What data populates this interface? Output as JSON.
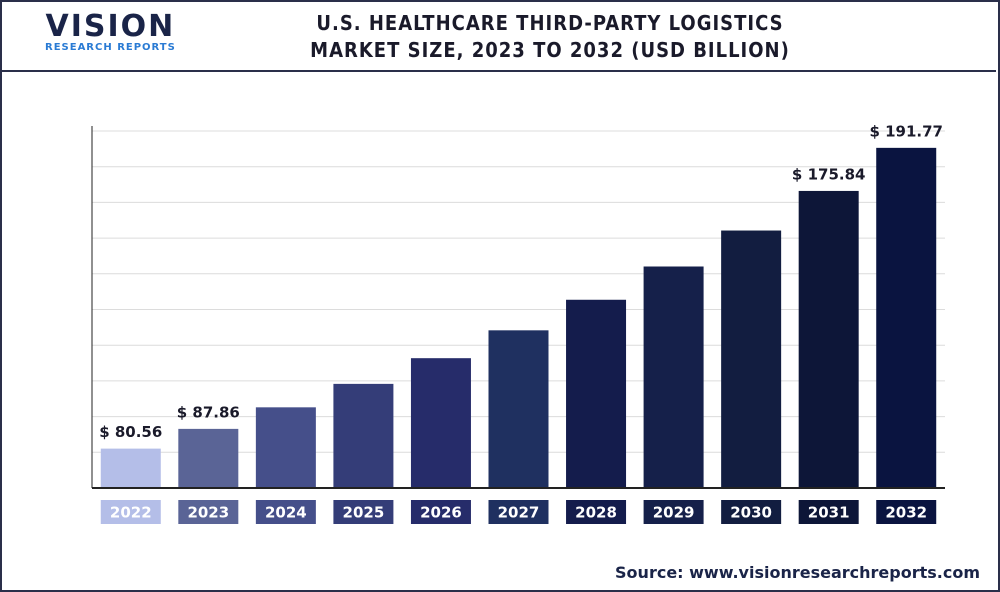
{
  "logo": {
    "name": "VISION",
    "tagline": "RESEARCH REPORTS"
  },
  "chart_data": {
    "type": "bar",
    "title": "U.S. HEALTHCARE THIRD-PARTY LOGISTICS MARKET SIZE, 2023 TO 2032 (USD BILLION)",
    "categories": [
      "2022",
      "2023",
      "2024",
      "2025",
      "2026",
      "2027",
      "2028",
      "2029",
      "2030",
      "2031",
      "2032"
    ],
    "values": [
      80.56,
      87.86,
      95.83,
      104.5,
      114.0,
      124.3,
      135.6,
      147.9,
      161.2,
      175.84,
      191.77
    ],
    "value_labels": [
      "$ 80.56",
      "$ 87.86",
      null,
      null,
      null,
      null,
      null,
      null,
      null,
      "$ 175.84",
      "$ 191.77"
    ],
    "colors": [
      "#b4bee8",
      "#5a6496",
      "#454f8a",
      "#343d78",
      "#262c6a",
      "#1f3060",
      "#141c4c",
      "#15204a",
      "#121d40",
      "#0d1638",
      "#0a1440"
    ],
    "ylim": [
      66,
      198
    ],
    "grid": true,
    "source": "Source: www.visionresearchreports.com"
  }
}
